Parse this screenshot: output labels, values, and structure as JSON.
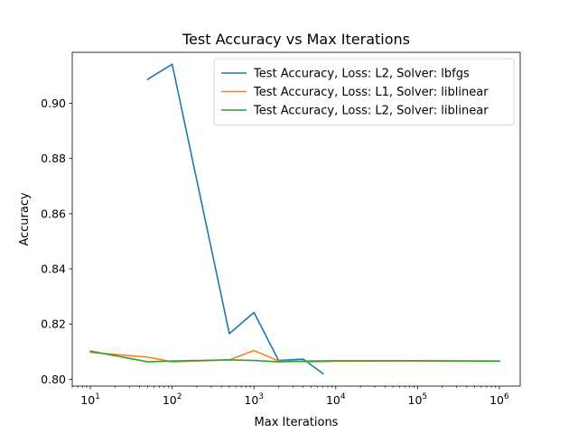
{
  "chart_data": {
    "type": "line",
    "title": "Test Accuracy vs Max Iterations",
    "xlabel": "Max Iterations",
    "ylabel": "Accuracy",
    "xscale": "log",
    "xlim": [
      6,
      1800000
    ],
    "ylim": [
      0.7975,
      0.9185
    ],
    "xticks": [
      10,
      100,
      1000,
      10000,
      100000,
      1000000
    ],
    "xtick_labels": [
      {
        "base": "10",
        "exp": "1"
      },
      {
        "base": "10",
        "exp": "2"
      },
      {
        "base": "10",
        "exp": "3"
      },
      {
        "base": "10",
        "exp": "4"
      },
      {
        "base": "10",
        "exp": "5"
      },
      {
        "base": "10",
        "exp": "6"
      }
    ],
    "yticks": [
      0.8,
      0.82,
      0.84,
      0.86,
      0.88,
      0.9
    ],
    "ytick_labels": [
      "0.80",
      "0.82",
      "0.84",
      "0.86",
      "0.88",
      "0.90"
    ],
    "grid": false,
    "legend_position": "top-right",
    "series": [
      {
        "name": "Test Accuracy, Loss: L2, Solver: lbfgs",
        "color": "#1f77b4",
        "x": [
          50,
          100,
          500,
          1000,
          2000,
          4000,
          7000
        ],
        "y": [
          0.9087,
          0.9142,
          0.8165,
          0.8242,
          0.8068,
          0.8073,
          0.802
        ]
      },
      {
        "name": "Test Accuracy, Loss: L1, Solver: liblinear",
        "color": "#ff7f0e",
        "x": [
          10,
          50,
          100,
          500,
          1000,
          2000,
          5000,
          10000,
          100000,
          1000000
        ],
        "y": [
          0.8097,
          0.808,
          0.8063,
          0.807,
          0.8104,
          0.8066,
          0.8063,
          0.8065,
          0.8066,
          0.8065
        ]
      },
      {
        "name": "Test Accuracy, Loss: L2, Solver: liblinear",
        "color": "#2ca02c",
        "x": [
          10,
          50,
          100,
          500,
          1000,
          2000,
          5000,
          10000,
          100000,
          1000000
        ],
        "y": [
          0.8102,
          0.8063,
          0.8066,
          0.807,
          0.8068,
          0.8063,
          0.8066,
          0.8067,
          0.8067,
          0.8066
        ]
      }
    ]
  }
}
